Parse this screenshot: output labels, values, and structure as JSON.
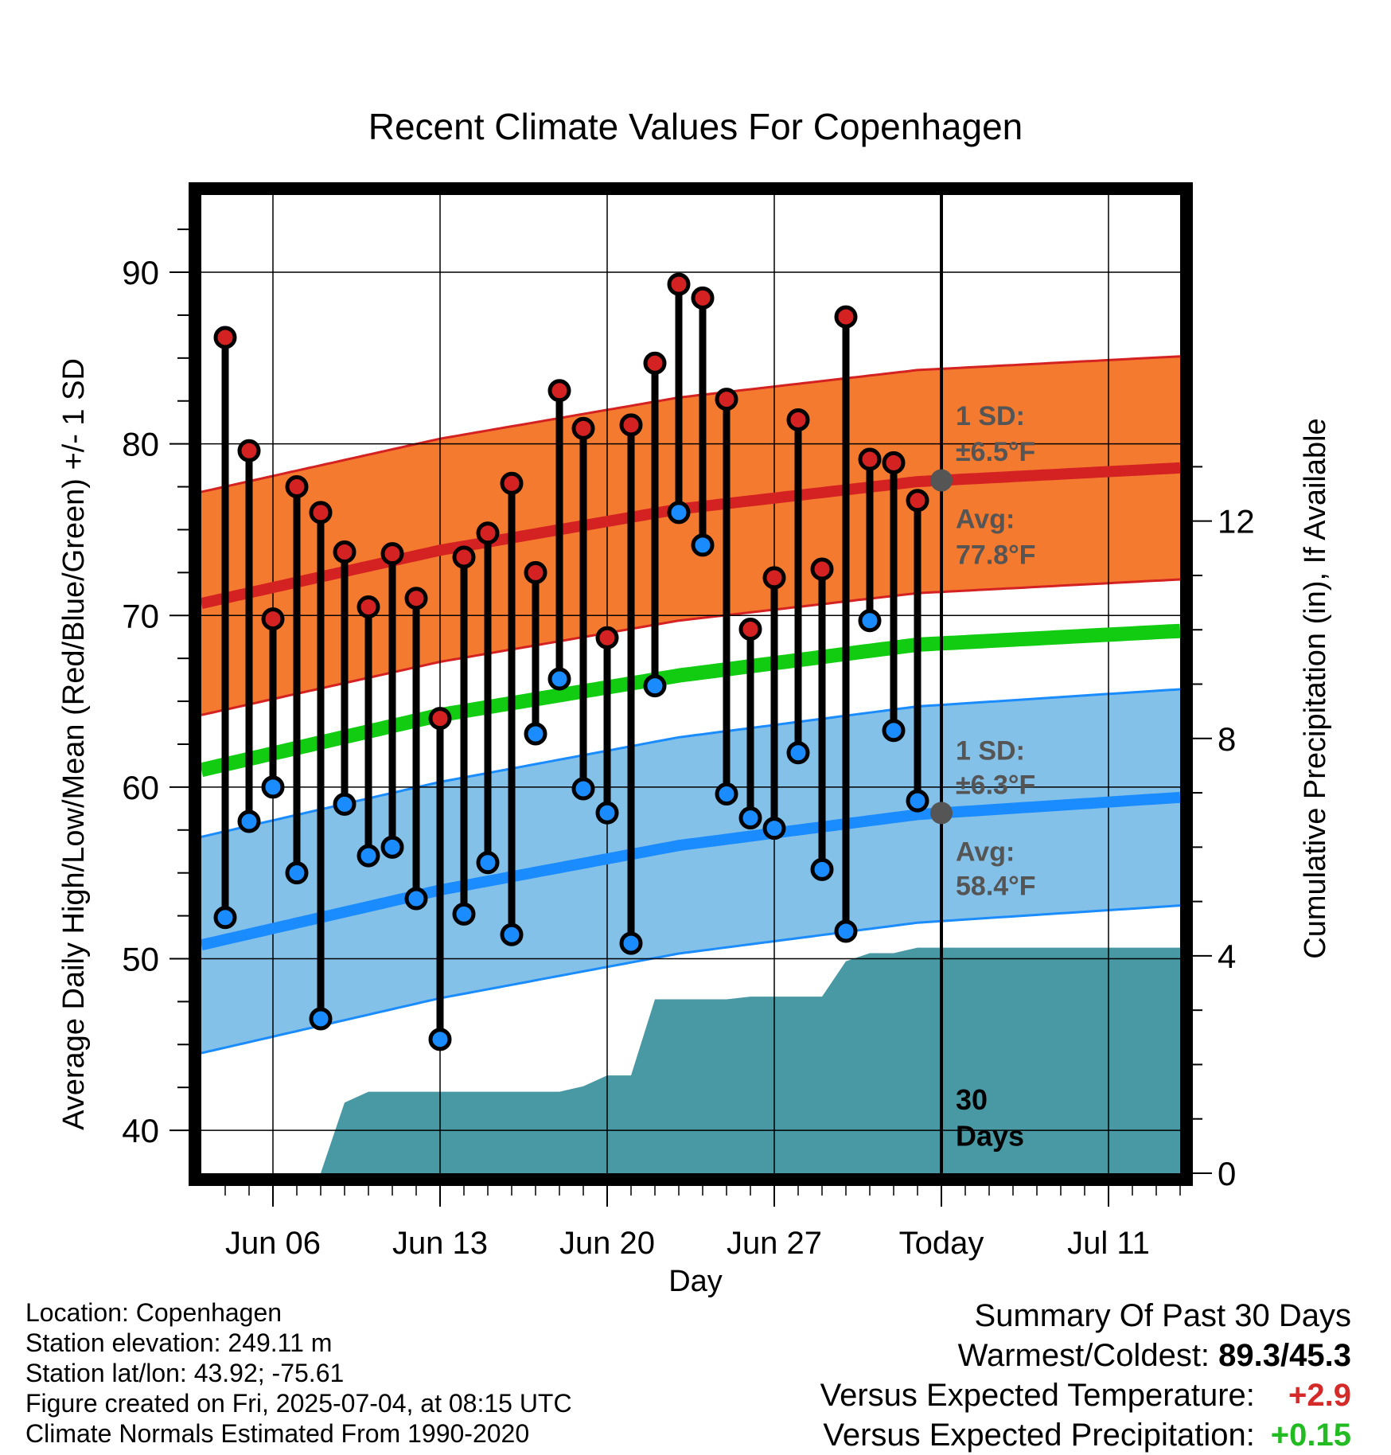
{
  "chart_data": {
    "type": "line",
    "title": "Recent Climate Values For Copenhagen",
    "xlabel": "Day",
    "ylabel": "Average Daily High/Low/Mean (Red/Blue/Green) +/- 1 SD",
    "y2label": "Cumulative Precipitation (in), If Available",
    "xlim": [
      "2025-06-03",
      "2025-07-14"
    ],
    "ylim": [
      37.5,
      94.5
    ],
    "y2lim": [
      0,
      18
    ],
    "x_ticks": [
      {
        "date": "2025-06-06",
        "label": "Jun 06"
      },
      {
        "date": "2025-06-13",
        "label": "Jun 13"
      },
      {
        "date": "2025-06-20",
        "label": "Jun 20"
      },
      {
        "date": "2025-06-27",
        "label": "Jun 27"
      },
      {
        "date": "2025-07-04",
        "label": "Today"
      },
      {
        "date": "2025-07-11",
        "label": "Jul 11"
      }
    ],
    "y_ticks": [
      40,
      50,
      60,
      70,
      80,
      90
    ],
    "y2_ticks": [
      0,
      4,
      8,
      12
    ],
    "grid": true,
    "today": "2025-07-04",
    "period_label": "30 Days",
    "normals": {
      "dates": [
        "2025-06-03",
        "2025-06-13",
        "2025-06-23",
        "2025-07-03",
        "2025-07-14"
      ],
      "high_mean": [
        70.7,
        73.8,
        76.2,
        77.8,
        78.6
      ],
      "high_sd": 6.5,
      "low_mean": [
        50.8,
        54.0,
        56.6,
        58.4,
        59.4
      ],
      "low_sd": 6.3,
      "mean": [
        61.0,
        64.2,
        66.5,
        68.3,
        69.1
      ]
    },
    "annotations": {
      "high_sd_label": "1 SD:",
      "high_sd_value": "±6.5°F",
      "high_avg_label": "Avg:",
      "high_avg_value": "77.8°F",
      "low_sd_label": "1 SD:",
      "low_sd_value": "±6.3°F",
      "low_avg_label": "Avg:",
      "low_avg_value": "58.4°F"
    },
    "series": [
      {
        "name": "High",
        "x": [
          "2025-06-04",
          "2025-06-05",
          "2025-06-06",
          "2025-06-07",
          "2025-06-08",
          "2025-06-09",
          "2025-06-10",
          "2025-06-11",
          "2025-06-12",
          "2025-06-13",
          "2025-06-14",
          "2025-06-15",
          "2025-06-16",
          "2025-06-17",
          "2025-06-18",
          "2025-06-19",
          "2025-06-20",
          "2025-06-21",
          "2025-06-22",
          "2025-06-23",
          "2025-06-24",
          "2025-06-25",
          "2025-06-26",
          "2025-06-27",
          "2025-06-28",
          "2025-06-29",
          "2025-06-30",
          "2025-07-01",
          "2025-07-02",
          "2025-07-03"
        ],
        "values": [
          86.2,
          79.6,
          69.8,
          77.5,
          76.0,
          73.7,
          70.5,
          73.6,
          71.0,
          64.0,
          73.4,
          74.8,
          77.7,
          72.5,
          83.1,
          80.9,
          68.7,
          81.1,
          84.7,
          89.3,
          88.5,
          82.6,
          69.2,
          72.2,
          81.4,
          72.7,
          87.4,
          79.1,
          78.9,
          76.7
        ]
      },
      {
        "name": "Low",
        "x": [
          "2025-06-04",
          "2025-06-05",
          "2025-06-06",
          "2025-06-07",
          "2025-06-08",
          "2025-06-09",
          "2025-06-10",
          "2025-06-11",
          "2025-06-12",
          "2025-06-13",
          "2025-06-14",
          "2025-06-15",
          "2025-06-16",
          "2025-06-17",
          "2025-06-18",
          "2025-06-19",
          "2025-06-20",
          "2025-06-21",
          "2025-06-22",
          "2025-06-23",
          "2025-06-24",
          "2025-06-25",
          "2025-06-26",
          "2025-06-27",
          "2025-06-28",
          "2025-06-29",
          "2025-06-30",
          "2025-07-01",
          "2025-07-02",
          "2025-07-03"
        ],
        "values": [
          52.4,
          58.0,
          60.0,
          55.0,
          46.5,
          59.0,
          56.0,
          56.5,
          53.5,
          45.3,
          52.6,
          55.6,
          51.4,
          63.1,
          66.3,
          59.9,
          58.5,
          50.9,
          65.9,
          76.0,
          74.1,
          59.6,
          58.2,
          57.6,
          62.0,
          55.2,
          51.6,
          69.7,
          63.3,
          59.2
        ]
      },
      {
        "name": "Cumulative Precipitation (in)",
        "x": [
          "2025-06-06",
          "2025-06-07",
          "2025-06-08",
          "2025-06-09",
          "2025-06-10",
          "2025-06-11",
          "2025-06-12",
          "2025-06-18",
          "2025-06-19",
          "2025-06-20",
          "2025-06-21",
          "2025-06-22",
          "2025-06-23",
          "2025-06-24",
          "2025-06-25",
          "2025-06-26",
          "2025-06-27",
          "2025-06-28",
          "2025-06-29",
          "2025-06-30",
          "2025-07-01",
          "2025-07-02",
          "2025-07-03",
          "2025-07-04",
          "2025-07-14"
        ],
        "values": [
          0,
          0,
          0.0,
          1.3,
          1.5,
          1.5,
          1.5,
          1.5,
          1.6,
          1.8,
          1.8,
          3.2,
          3.2,
          3.2,
          3.2,
          3.25,
          3.25,
          3.25,
          3.25,
          3.9,
          4.05,
          4.05,
          4.15,
          4.15,
          4.15
        ]
      }
    ]
  },
  "footer": {
    "location": "Location: Copenhagen",
    "elevation": "Station elevation: 249.11 m",
    "latlon": "Station lat/lon: 43.92; -75.61",
    "created": "Figure created on Fri, 2025-07-04, at 08:15 UTC",
    "normals": "Climate Normals Estimated From 1990-2020"
  },
  "summary": {
    "title": "Summary Of Past 30 Days",
    "warmest_label": "Warmest/Coldest:",
    "warmest_value": "89.3/45.3",
    "temp_label": "Versus Expected Temperature:",
    "temp_value": "+2.9",
    "temp_color": "#d42a2a",
    "precip_label": "Versus Expected Precipitation:",
    "precip_value": "+0.15",
    "precip_color": "#22bb22"
  },
  "colors": {
    "high_band": "#f47a30",
    "high_line": "#d42222",
    "low_band": "#84c1e8",
    "low_line": "#1a8cff",
    "mean_line": "#11cc11",
    "precip": "#4899a3",
    "high_point": "#d42222",
    "low_point": "#1a8cff",
    "avg_marker": "#555555",
    "annotation_text": "#555555"
  }
}
